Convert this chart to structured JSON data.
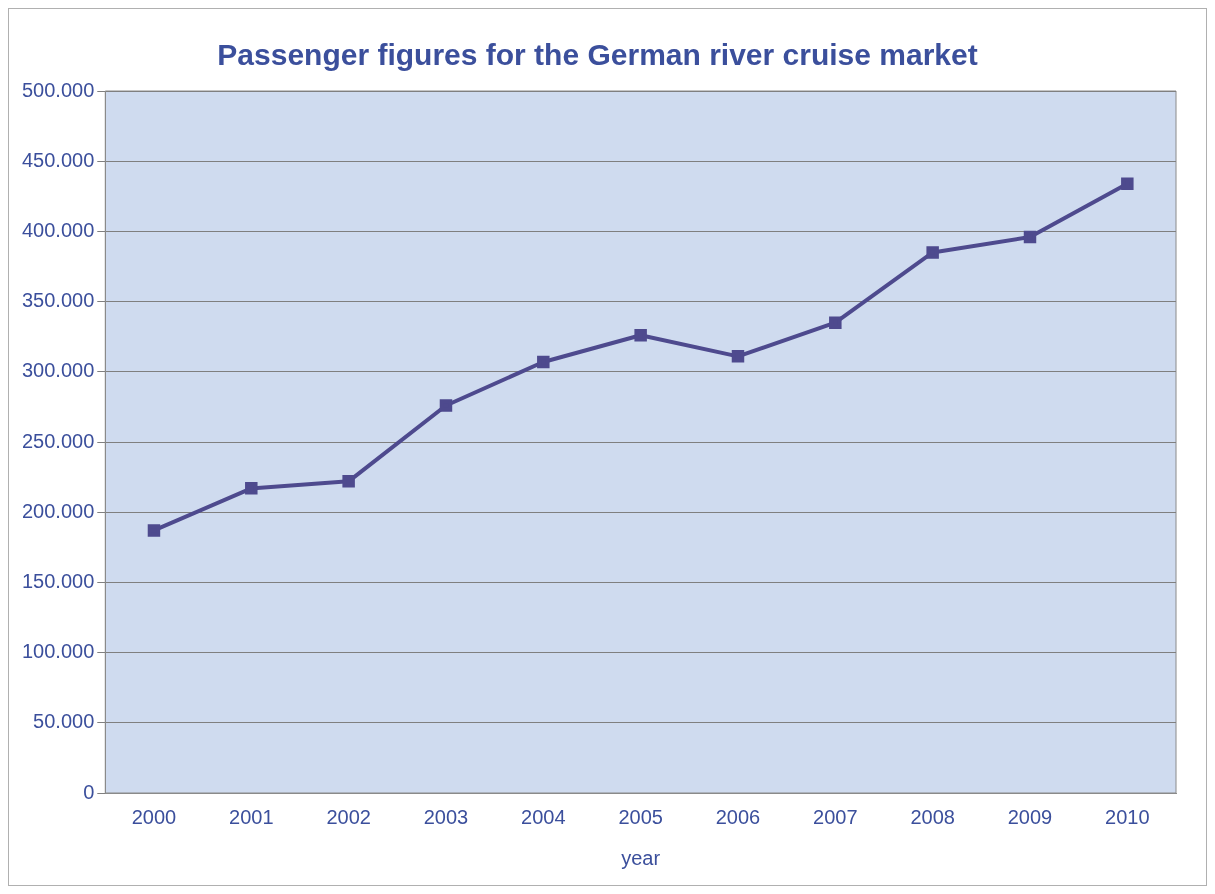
{
  "chart_data": {
    "type": "line",
    "title": "Passenger figures for the German river cruise market",
    "xlabel": "year",
    "categories": [
      "2000",
      "2001",
      "2002",
      "2003",
      "2004",
      "2005",
      "2006",
      "2007",
      "2008",
      "2009",
      "2010"
    ],
    "series": [
      {
        "color": "#4e4a8e",
        "values": [
          187000,
          217000,
          222000,
          276000,
          307000,
          326000,
          311000,
          335000,
          385000,
          396000,
          434000
        ]
      }
    ],
    "ylim": [
      0,
      500000
    ],
    "yticks": [
      {
        "value": 0,
        "label": "0"
      },
      {
        "value": 50000,
        "label": "50.000"
      },
      {
        "value": 100000,
        "label": "100.000"
      },
      {
        "value": 150000,
        "label": "150.000"
      },
      {
        "value": 200000,
        "label": "200.000"
      },
      {
        "value": 250000,
        "label": "250.000"
      },
      {
        "value": 300000,
        "label": "300.000"
      },
      {
        "value": 350000,
        "label": "350.000"
      },
      {
        "value": 400000,
        "label": "400.000"
      },
      {
        "value": 450000,
        "label": "450.000"
      },
      {
        "value": 500000,
        "label": "500.000"
      }
    ],
    "grid": "y",
    "marker": "square",
    "line_style": "solid",
    "legend": false
  }
}
